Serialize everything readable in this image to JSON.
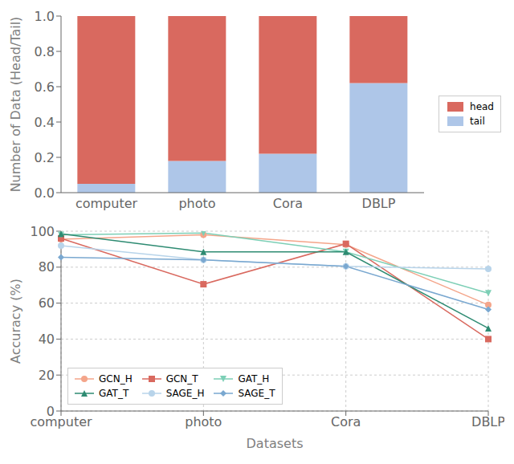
{
  "chart_data": [
    {
      "type": "bar",
      "stacked": true,
      "categories": [
        "computer",
        "photo",
        "Cora",
        "DBLP"
      ],
      "series": [
        {
          "name": "tail",
          "color": "#aec6e8",
          "values": [
            0.05,
            0.18,
            0.22,
            0.62
          ]
        },
        {
          "name": "head",
          "color": "#d9695f",
          "values": [
            0.95,
            0.82,
            0.78,
            0.38
          ]
        }
      ],
      "ylabel": "Number of Data (Head/Tail)",
      "ylim": [
        0.0,
        1.0
      ],
      "yticks": [
        {
          "value": 0,
          "label": "0.0"
        },
        0.2,
        0.4,
        0.6,
        0.8,
        {
          "value": 1,
          "label": "1.0"
        }
      ],
      "grid": false,
      "legend": "right"
    },
    {
      "type": "line",
      "categories": [
        "computer",
        "photo",
        "Cora",
        "DBLP"
      ],
      "series": [
        {
          "name": "GCN_H",
          "color": "#f4a58a",
          "marker": "circle",
          "values": [
            95.5,
            98.0,
            92.5,
            59.0
          ]
        },
        {
          "name": "GCN_T",
          "color": "#d9695f",
          "marker": "square",
          "values": [
            96.0,
            70.5,
            93.0,
            40.0
          ]
        },
        {
          "name": "GAT_H",
          "color": "#7dcfb6",
          "marker": "triangle_down",
          "values": [
            98.0,
            99.0,
            88.5,
            65.5
          ]
        },
        {
          "name": "GAT_T",
          "color": "#2e8b72",
          "marker": "triangle_up",
          "values": [
            98.5,
            88.5,
            88.5,
            46.0
          ]
        },
        {
          "name": "SAGE_H",
          "color": "#b8d4ea",
          "marker": "circle",
          "values": [
            92.0,
            84.0,
            80.5,
            79.0
          ]
        },
        {
          "name": "SAGE_T",
          "color": "#7aa8d0",
          "marker": "diamond",
          "values": [
            85.5,
            84.0,
            80.5,
            56.5
          ]
        }
      ],
      "xlabel": "Datasets",
      "ylabel": "Accuracy (%)",
      "ylim": [
        0,
        100
      ],
      "yticks": [
        0,
        20,
        40,
        60,
        80,
        100
      ],
      "grid": true,
      "legend": "lower left"
    }
  ]
}
